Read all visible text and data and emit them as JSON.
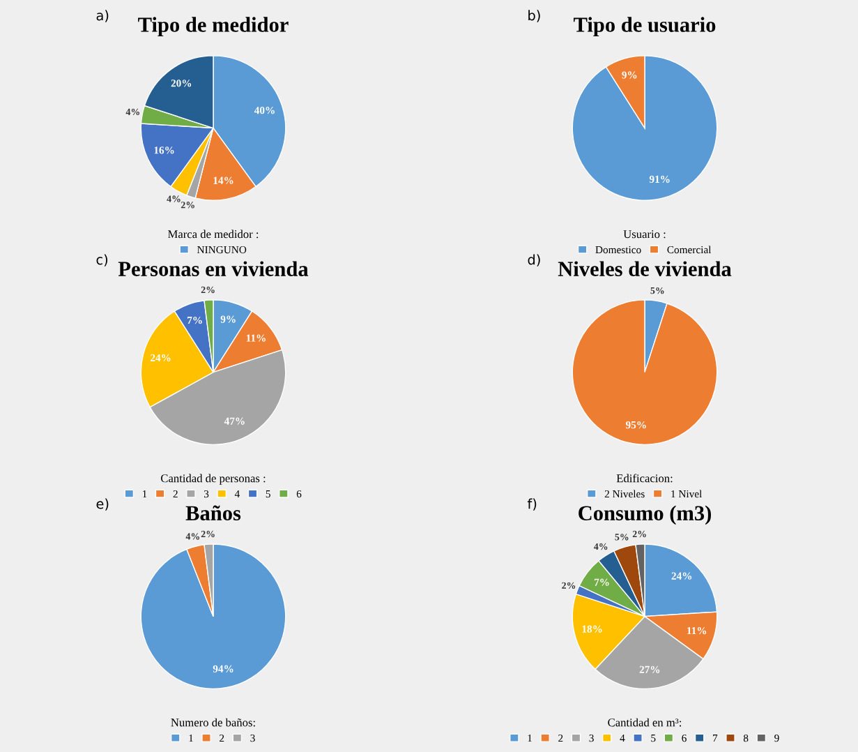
{
  "chart_data": [
    {
      "type": "pie",
      "title": "Tipo de medidor",
      "annotations": [
        "a)"
      ],
      "legend_title": "Marca de medidor :",
      "legend": "bottom",
      "categories": [
        "NINGUNO",
        null,
        null,
        null,
        null,
        null,
        null
      ],
      "values": [
        40,
        14,
        2,
        4,
        16,
        4,
        20
      ],
      "value_labels": [
        "40%",
        "14%",
        "2%",
        "4%",
        "16%",
        "4%",
        "20%"
      ],
      "colors": [
        "#5b9bd5",
        "#ed7d31",
        "#a5a5a5",
        "#ffc000",
        "#4472c4",
        "#70ad47",
        "#255e91"
      ]
    },
    {
      "type": "pie",
      "title": "Tipo de usuario",
      "annotations": [
        "b)"
      ],
      "legend_title": "Usuario :",
      "legend": "bottom",
      "categories": [
        "Domestico",
        "Comercial"
      ],
      "values": [
        91,
        9
      ],
      "value_labels": [
        "91%",
        "9%"
      ],
      "colors": [
        "#5b9bd5",
        "#ed7d31"
      ]
    },
    {
      "type": "pie",
      "title": "Personas en vivienda",
      "annotations": [
        "c)"
      ],
      "legend_title": "Cantidad de personas :",
      "legend": "bottom",
      "categories": [
        "1",
        "2",
        "3",
        "4",
        "5",
        "6"
      ],
      "values": [
        9,
        11,
        47,
        24,
        7,
        2
      ],
      "value_labels": [
        "9%",
        "11%",
        "47%",
        "24%",
        "7%",
        "2%"
      ],
      "colors": [
        "#5b9bd5",
        "#ed7d31",
        "#a5a5a5",
        "#ffc000",
        "#4472c4",
        "#70ad47"
      ]
    },
    {
      "type": "pie",
      "title": "Niveles de vivienda",
      "annotations": [
        "d)"
      ],
      "legend_title": "Edificacion:",
      "legend": "bottom",
      "categories": [
        "2 Niveles",
        "1 Nivel"
      ],
      "values": [
        5,
        95
      ],
      "value_labels": [
        "5%",
        "95%"
      ],
      "colors": [
        "#5b9bd5",
        "#ed7d31"
      ]
    },
    {
      "type": "pie",
      "title": "Baños",
      "annotations": [
        "e)"
      ],
      "legend_title": "Numero de baños:",
      "legend": "bottom",
      "categories": [
        "1",
        "2",
        "3"
      ],
      "values": [
        94,
        4,
        2
      ],
      "value_labels": [
        "94%",
        "4%",
        "2%"
      ],
      "colors": [
        "#5b9bd5",
        "#ed7d31",
        "#a5a5a5"
      ]
    },
    {
      "type": "pie",
      "title": "Consumo (m3)",
      "annotations": [
        "f)"
      ],
      "legend_title": "Cantidad en m³:",
      "legend": "bottom",
      "categories": [
        "1",
        "2",
        "3",
        "4",
        "5",
        "6",
        "7",
        "8",
        "9"
      ],
      "values": [
        24,
        11,
        27,
        18,
        2,
        7,
        4,
        5,
        2
      ],
      "value_labels": [
        "24%",
        "11%",
        "27%",
        "18%",
        "2%",
        "7%",
        "4%",
        "5%",
        "2%"
      ],
      "colors": [
        "#5b9bd5",
        "#ed7d31",
        "#a5a5a5",
        "#ffc000",
        "#4472c4",
        "#70ad47",
        "#255e91",
        "#9e480e",
        "#636363"
      ]
    }
  ]
}
